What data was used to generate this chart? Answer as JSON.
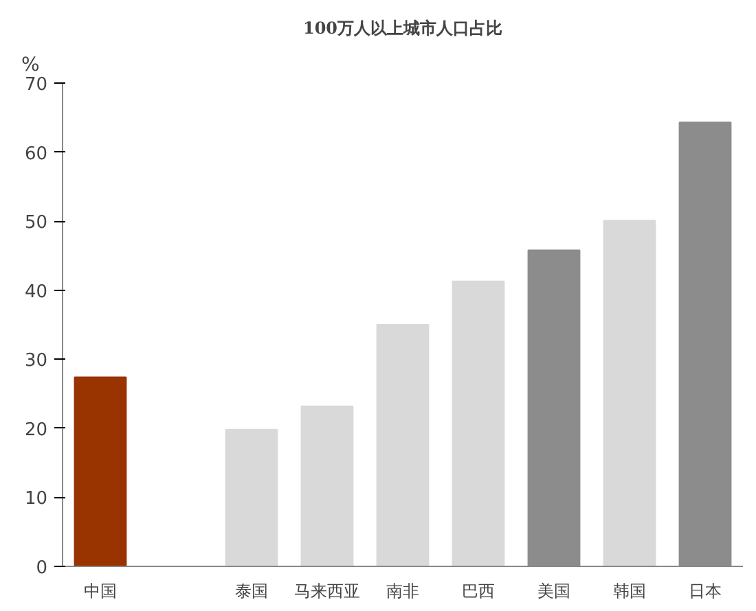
{
  "chart_data": {
    "type": "bar",
    "title": "100万人以上城市人口占比",
    "ylabel": "%",
    "categories": [
      "中国",
      null,
      "泰国",
      "马来西亚",
      "南非",
      "巴西",
      "美国",
      "韩国",
      "日本"
    ],
    "values": [
      27.4,
      null,
      19.8,
      23.2,
      35.0,
      41.3,
      45.8,
      50.1,
      64.3
    ],
    "colors": [
      "#993300",
      "#d9d9d9",
      "#d9d9d9",
      "#d9d9d9",
      "#d9d9d9",
      "#d9d9d9",
      "#8c8c8c",
      "#d9d9d9",
      "#8c8c8c"
    ],
    "ylim": [
      0,
      70
    ],
    "yticks": [
      0,
      10,
      20,
      30,
      40,
      50,
      60,
      70
    ],
    "grid": false
  }
}
